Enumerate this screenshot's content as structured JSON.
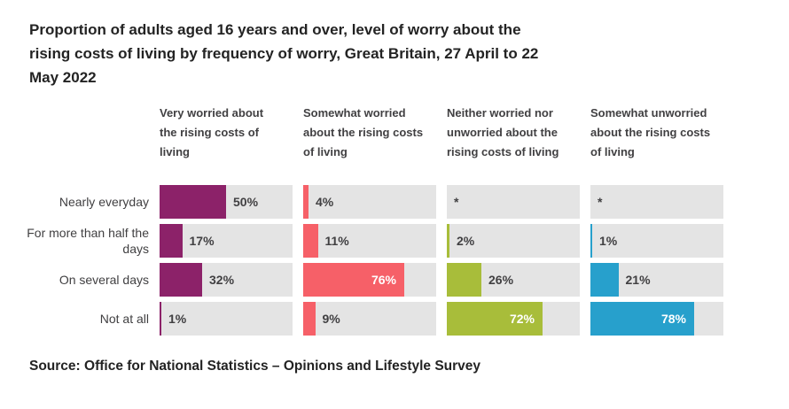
{
  "title": "Proportion of adults aged 16 years and over, level of worry about the rising costs of living by frequency of worry, Great Britain, 27 April to 22 May 2022",
  "title_lines": [
    "Proportion of adults aged 16 years and over, level of worry about the",
    "rising costs of living by frequency of worry, Great Britain, 27 April to 22",
    "May 2022"
  ],
  "source": "Source: Office for National Statistics – Opinions and Lifestyle Survey",
  "colors": {
    "track": "#e4e4e4",
    "text": "#414042",
    "inside_label": "#ffffff"
  },
  "chart_data": {
    "type": "bar",
    "orientation": "horizontal",
    "grid": false,
    "xlim": [
      0,
      100
    ],
    "value_suffix": "%",
    "suppressed_marker": "*",
    "inside_label_threshold": 60,
    "categories": [
      "Nearly everyday",
      "For more than half the days",
      "On several days",
      "Not at all"
    ],
    "series": [
      {
        "name": "Very worried about the rising costs of living",
        "header_lines": [
          "Very worried about",
          "the rising costs of",
          "living"
        ],
        "color": "#8c2269",
        "values": [
          50,
          17,
          32,
          1
        ],
        "labels": [
          "50%",
          "17%",
          "32%",
          "1%"
        ]
      },
      {
        "name": "Somewhat worried about the rising costs of living",
        "header_lines": [
          "Somewhat worried",
          "about the rising costs",
          "of living"
        ],
        "color": "#f66068",
        "values": [
          4,
          11,
          76,
          9
        ],
        "labels": [
          "4%",
          "11%",
          "76%",
          "9%"
        ]
      },
      {
        "name": "Neither worried nor unworried about the rising costs of living",
        "header_lines": [
          "Neither worried nor",
          "unworried about the",
          "rising costs of living"
        ],
        "color": "#a8bd3a",
        "values": [
          null,
          2,
          26,
          72
        ],
        "labels": [
          "*",
          "2%",
          "26%",
          "72%"
        ]
      },
      {
        "name": "Somewhat unworried about the rising costs of living",
        "header_lines": [
          "Somewhat unworried",
          "about the rising costs",
          "of living"
        ],
        "color": "#27a0cc",
        "values": [
          null,
          1,
          21,
          78
        ],
        "labels": [
          "*",
          "1%",
          "21%",
          "78%"
        ]
      }
    ]
  }
}
